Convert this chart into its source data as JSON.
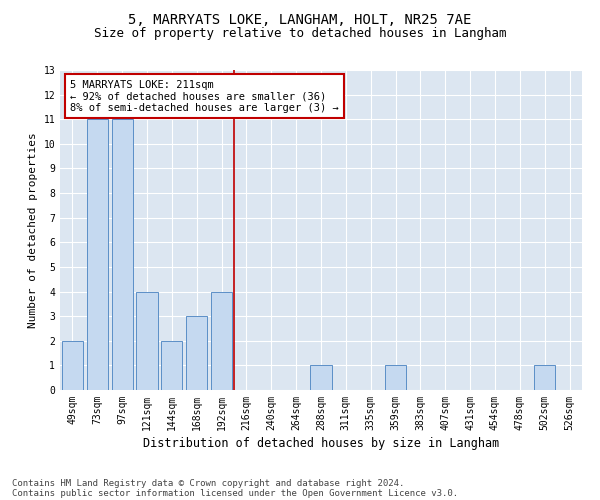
{
  "title1": "5, MARRYATS LOKE, LANGHAM, HOLT, NR25 7AE",
  "title2": "Size of property relative to detached houses in Langham",
  "xlabel": "Distribution of detached houses by size in Langham",
  "ylabel": "Number of detached properties",
  "categories": [
    "49sqm",
    "73sqm",
    "97sqm",
    "121sqm",
    "144sqm",
    "168sqm",
    "192sqm",
    "216sqm",
    "240sqm",
    "264sqm",
    "288sqm",
    "311sqm",
    "335sqm",
    "359sqm",
    "383sqm",
    "407sqm",
    "431sqm",
    "454sqm",
    "478sqm",
    "502sqm",
    "526sqm"
  ],
  "values": [
    2,
    11,
    11,
    4,
    2,
    3,
    4,
    0,
    0,
    0,
    1,
    0,
    0,
    1,
    0,
    0,
    0,
    0,
    0,
    1,
    0
  ],
  "bar_color": "#c5d9f0",
  "bar_edge_color": "#5b8fc7",
  "marker_line_index": 6,
  "annotation_title": "5 MARRYATS LOKE: 211sqm",
  "annotation_line1": "← 92% of detached houses are smaller (36)",
  "annotation_line2": "8% of semi-detached houses are larger (3) →",
  "marker_line_color": "#c00000",
  "annotation_box_edge_color": "#c00000",
  "ylim": [
    0,
    13
  ],
  "yticks": [
    0,
    1,
    2,
    3,
    4,
    5,
    6,
    7,
    8,
    9,
    10,
    11,
    12,
    13
  ],
  "plot_bg_color": "#dce6f1",
  "title1_fontsize": 10,
  "title2_fontsize": 9,
  "tick_fontsize": 7,
  "ylabel_fontsize": 8,
  "xlabel_fontsize": 8.5,
  "footnote_fontsize": 6.5,
  "annotation_fontsize": 7.5
}
